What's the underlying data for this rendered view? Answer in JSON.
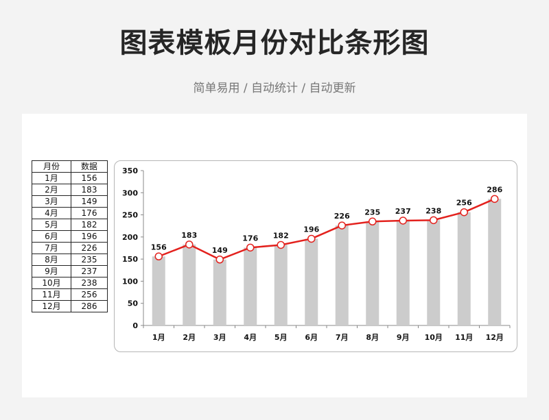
{
  "header": {
    "title": "图表模板月份对比条形图",
    "subtitle": "简单易用 / 自动统计 / 自动更新"
  },
  "table": {
    "headers": [
      "月份",
      "数据"
    ]
  },
  "colors": {
    "bar": "#cccccc",
    "line": "#e3211d",
    "marker_fill": "#ffffff",
    "axis": "#888888"
  },
  "chart_data": {
    "type": "bar",
    "categories": [
      "1月",
      "2月",
      "3月",
      "4月",
      "5月",
      "6月",
      "7月",
      "8月",
      "9月",
      "10月",
      "11月",
      "12月"
    ],
    "series": [
      {
        "type": "bar",
        "values": [
          156,
          183,
          149,
          176,
          182,
          196,
          226,
          235,
          237,
          238,
          256,
          286
        ]
      },
      {
        "type": "line",
        "values": [
          156,
          183,
          149,
          176,
          182,
          196,
          226,
          235,
          237,
          238,
          256,
          286
        ]
      }
    ],
    "title": "",
    "xlabel": "",
    "ylabel": "",
    "ylim": [
      0,
      350
    ],
    "yticks": [
      0,
      50,
      100,
      150,
      200,
      250,
      300,
      350
    ],
    "grid": false,
    "legend": "none"
  }
}
